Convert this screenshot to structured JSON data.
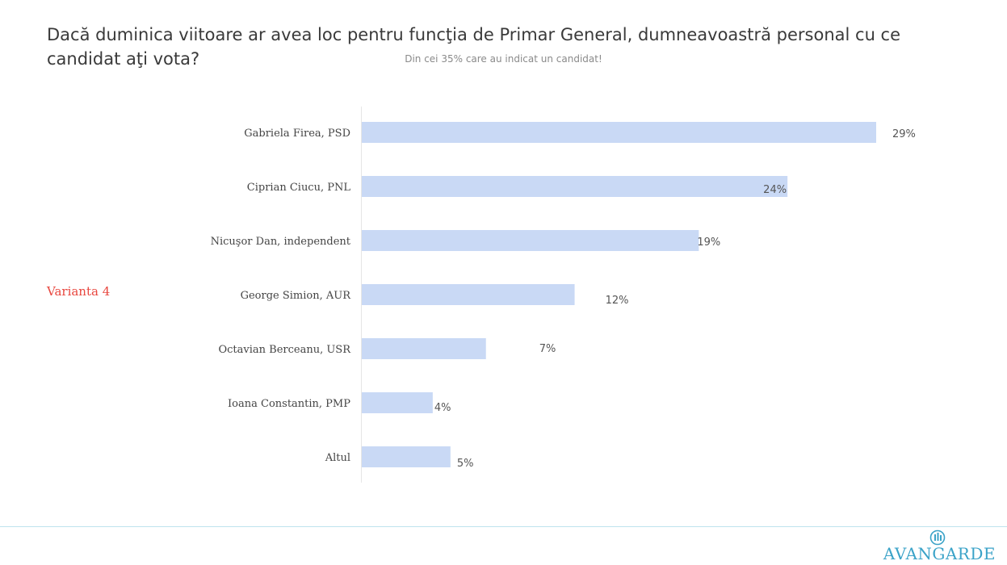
{
  "title": "Dacă duminica viitoare ar avea loc pentru funcţia de Primar General, dumneavoastră personal cu ce candidat aţi vota?",
  "subtitle": "Din cei 35% care au indicat un candidat!",
  "variant_label": "Varianta 4",
  "brand": "AVANGARDE",
  "colors": {
    "bar": "#c9d9f5",
    "variant": "#e8473f",
    "brand": "#3ba3c8",
    "axis": "#e6e6e6"
  },
  "chart_data": {
    "type": "bar",
    "orientation": "horizontal",
    "categories": [
      "Gabriela Firea, PSD",
      "Ciprian Ciucu, PNL",
      "Nicuşor Dan, independent",
      "George Simion, AUR",
      "Octavian Berceanu, USR",
      "Ioana Constantin, PMP",
      "Altul"
    ],
    "values": [
      29,
      24,
      19,
      12,
      7,
      4,
      5
    ],
    "value_labels": [
      "29%",
      "24%",
      "19%",
      "12%",
      "7%",
      "4%",
      "5%"
    ],
    "xlim": [
      0,
      29
    ],
    "grid": false,
    "legend": "none"
  }
}
